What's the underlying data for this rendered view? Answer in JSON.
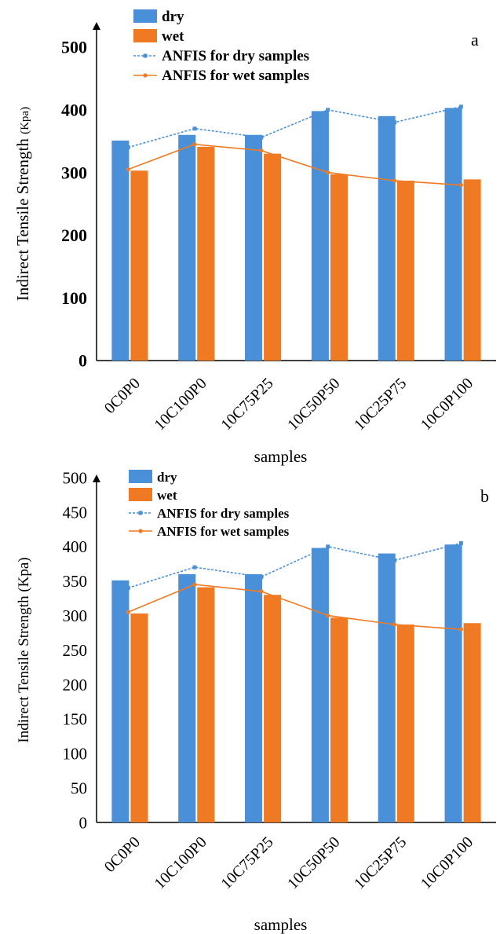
{
  "chart_data": [
    {
      "panel_label": "a",
      "type": "bar",
      "categories": [
        "0C0P0",
        "10C100P0",
        "10C75P25",
        "10C50P50",
        "10C25P75",
        "10C0P100"
      ],
      "series": [
        {
          "name": "dry",
          "type": "bar",
          "color": "#4a90d9",
          "values": [
            351,
            360,
            360,
            398,
            390,
            403
          ]
        },
        {
          "name": "wet",
          "type": "bar",
          "color": "#f07a23",
          "values": [
            303,
            341,
            330,
            297,
            287,
            289
          ]
        },
        {
          "name": "ANFIS for dry samples",
          "type": "line",
          "style": "dashed",
          "color": "#4a90d9",
          "values": [
            340,
            370,
            356,
            400,
            380,
            405
          ]
        },
        {
          "name": "ANFIS for wet samples",
          "type": "line",
          "style": "solid",
          "color": "#f07a23",
          "values": [
            305,
            345,
            335,
            300,
            287,
            280
          ]
        }
      ],
      "xlabel": "samples",
      "ylabel_main": "Indirect Tensile Strength ",
      "ylabel_unit": "(Kpa)",
      "ylim": [
        0,
        500
      ],
      "yticks": [
        0,
        100,
        200,
        300,
        400,
        500
      ],
      "legend_position": "top-left"
    },
    {
      "panel_label": "b",
      "type": "bar",
      "categories": [
        "0C0P0",
        "10C100P0",
        "10C75P25",
        "10C50P50",
        "10C25P75",
        "10C0P100"
      ],
      "series": [
        {
          "name": "dry",
          "type": "bar",
          "color": "#4a90d9",
          "values": [
            351,
            360,
            360,
            398,
            390,
            403
          ]
        },
        {
          "name": "wet",
          "type": "bar",
          "color": "#f07a23",
          "values": [
            303,
            341,
            330,
            297,
            287,
            289
          ]
        },
        {
          "name": "ANFIS for dry samples",
          "type": "line",
          "style": "dashed",
          "color": "#4a90d9",
          "values": [
            340,
            370,
            356,
            400,
            380,
            405
          ]
        },
        {
          "name": "ANFIS for wet samples",
          "type": "line",
          "style": "solid",
          "color": "#f07a23",
          "values": [
            305,
            345,
            335,
            300,
            287,
            280
          ]
        }
      ],
      "xlabel": "samples",
      "ylabel_main": "Indirect Tensile Strength (Kpa)",
      "ylabel_unit": "",
      "ylim": [
        0,
        500
      ],
      "yticks": [
        0,
        50,
        100,
        150,
        200,
        250,
        300,
        350,
        400,
        450,
        500
      ],
      "legend_position": "top-left"
    }
  ]
}
